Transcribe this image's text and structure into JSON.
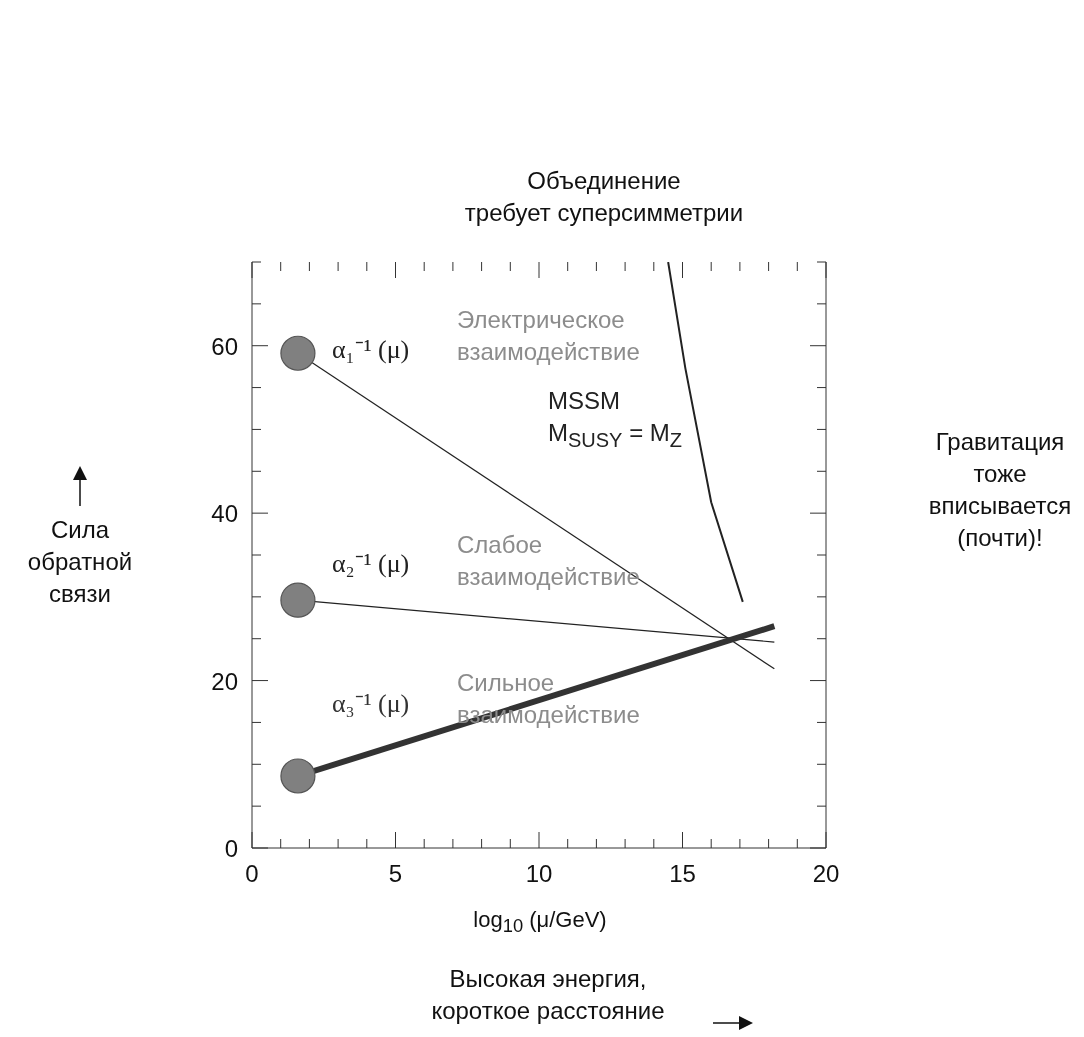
{
  "chart_data": {
    "type": "line",
    "xlabel": "log$_{10}$ (μ/GeV)",
    "ylabel": "Сила\nобратной\nсвязи",
    "xlim": [
      0,
      20
    ],
    "xticks": [
      0,
      {
        "value": 1,
        "label": null
      },
      {
        "value": 2,
        "label": null
      },
      {
        "value": 3,
        "label": null
      },
      {
        "value": 4,
        "label": null
      },
      5,
      {
        "value": 6,
        "label": null
      },
      {
        "value": 7,
        "label": null
      },
      {
        "value": 8,
        "label": null
      },
      {
        "value": 9,
        "label": null
      },
      10,
      {
        "value": 11,
        "label": null
      },
      {
        "value": 12,
        "label": null
      },
      {
        "value": 13,
        "label": null
      },
      {
        "value": 14,
        "label": null
      },
      15,
      {
        "value": 16,
        "label": null
      },
      {
        "value": 17,
        "label": null
      },
      {
        "value": 18,
        "label": null
      },
      {
        "value": 19,
        "label": null
      },
      20
    ],
    "ylim": [
      0,
      70
    ],
    "yticks": [
      0,
      {
        "value": 5,
        "label": null
      },
      {
        "value": 10,
        "label": null
      },
      {
        "value": 15,
        "label": null
      },
      20,
      {
        "value": 25,
        "label": null
      },
      {
        "value": 30,
        "label": null
      },
      {
        "value": 35,
        "label": null
      },
      40,
      {
        "value": 45,
        "label": null
      },
      {
        "value": 50,
        "label": null
      },
      {
        "value": 55,
        "label": null
      },
      60,
      {
        "value": 65,
        "label": null
      },
      {
        "value": 70,
        "label": null
      }
    ],
    "grid": false,
    "legend": false,
    "series": [
      {
        "name": "α₁⁻¹ (μ)",
        "color": "#222222",
        "x": [
          1.6,
          18.2
        ],
        "values": [
          59.1,
          21.4
        ]
      },
      {
        "name": "α₂⁻¹ (μ)",
        "color": "#222222",
        "x": [
          1.6,
          18.2
        ],
        "values": [
          29.6,
          24.6
        ]
      },
      {
        "name": "α₃⁻¹ (μ)",
        "color": "#333333",
        "x": [
          1.6,
          18.2
        ],
        "values": [
          8.6,
          26.5
        ]
      },
      {
        "name": "MSSM\nM$_{SUSY}$ = M$_{Z}$",
        "color": "#222222",
        "x": [
          14.5,
          15.1,
          16.0,
          17.1
        ],
        "values": [
          70,
          57.3,
          41.3,
          29.4
        ]
      },
      {
        "type": "scatter",
        "marker": "circle",
        "color": "#808080",
        "x": [
          1.6,
          1.6,
          1.6
        ],
        "values": [
          59.1,
          29.6,
          8.6
        ]
      }
    ],
    "annotations": [
      "Электрическое\nвзаимодействие",
      "Слабое\nвзаимодействие",
      "Сильное\nвзаимодействие",
      "Объединение\nтребует суперсимметрии",
      "Гравитация\nтоже\nвписывается\n(почти)!",
      "Высокая энергия,\nкороткое расстояние"
    ]
  }
}
